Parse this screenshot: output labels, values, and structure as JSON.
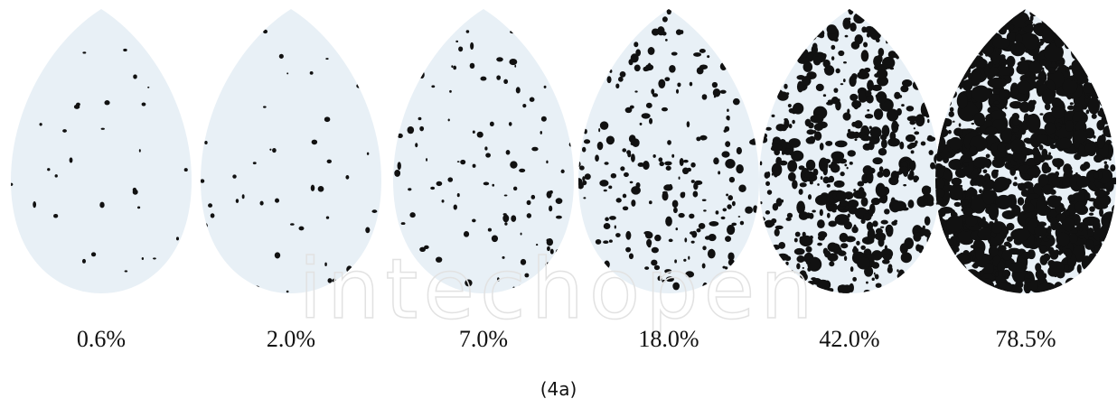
{
  "leaves": [
    {
      "label": "0.6%"
    },
    {
      "label": "2.0%"
    },
    {
      "label": "7.0%"
    },
    {
      "label": "18.0%"
    },
    {
      "label": "42.0%"
    },
    {
      "label": "78.5%"
    }
  ],
  "watermark": "intechopen",
  "caption": "(4a)"
}
